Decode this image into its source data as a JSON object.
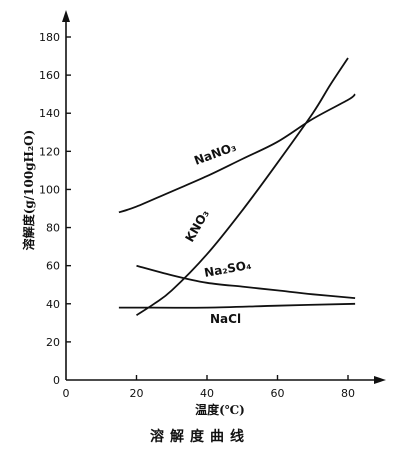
{
  "chart_data": {
    "type": "line",
    "title": "溶解度曲线",
    "xlabel": "温度(℃)",
    "ylabel": "溶解度(g/100gH₂O)",
    "xlim": [
      0,
      85
    ],
    "ylim": [
      0,
      190
    ],
    "xticks": [
      0,
      20,
      40,
      60,
      80
    ],
    "yticks": [
      0,
      20,
      40,
      60,
      80,
      100,
      120,
      140,
      160,
      180
    ],
    "grid": false,
    "series": [
      {
        "name": "NaNO₃",
        "x": [
          15,
          20,
          30,
          40,
          50,
          60,
          70,
          80,
          82
        ],
        "y": [
          88,
          91,
          99,
          107,
          116,
          125,
          137,
          147,
          150
        ]
      },
      {
        "name": "KNO₃",
        "x": [
          20,
          25,
          30,
          40,
          50,
          60,
          70,
          75,
          80
        ],
        "y": [
          34,
          40,
          47,
          66,
          89,
          114,
          140,
          155,
          169
        ]
      },
      {
        "name": "Na₂SO₄",
        "x": [
          20,
          30,
          40,
          50,
          60,
          70,
          82
        ],
        "y": [
          60,
          55,
          51,
          49,
          47,
          45,
          43
        ]
      },
      {
        "name": "NaCl",
        "x": [
          15,
          20,
          40,
          60,
          82
        ],
        "y": [
          38,
          38,
          38,
          39,
          40
        ]
      }
    ]
  }
}
